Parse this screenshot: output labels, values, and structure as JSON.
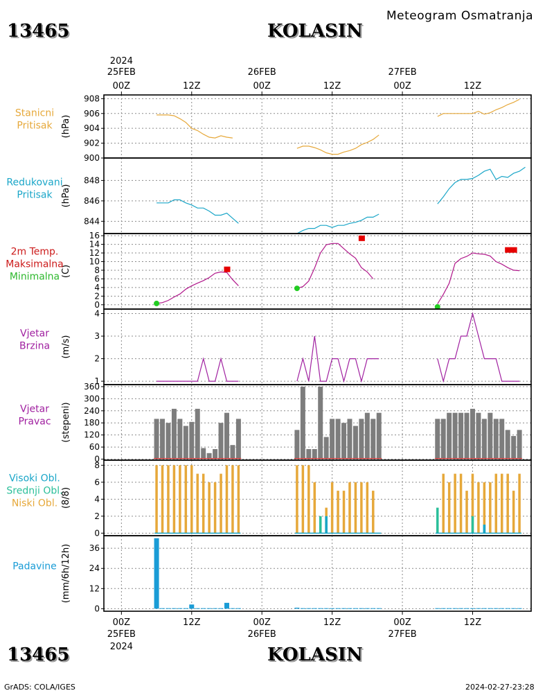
{
  "header": {
    "station_id": "13465",
    "station_name": "KOLASIN",
    "subtitle": "Meteogram Osmatranja"
  },
  "footer": {
    "station_id": "13465",
    "station_name": "KOLASIN",
    "credit": "GrADS: COLA/IGES",
    "timestamp": "2024-02-27-23:28"
  },
  "time_axis": {
    "top_labels": [
      {
        "line1": "2024",
        "line2": "25FEB",
        "line3": "00Z",
        "t": 0
      },
      {
        "line1": "",
        "line2": "",
        "line3": "12Z",
        "t": 12
      },
      {
        "line1": "",
        "line2": "26FEB",
        "line3": "00Z",
        "t": 24
      },
      {
        "line1": "",
        "line2": "",
        "line3": "12Z",
        "t": 36
      },
      {
        "line1": "",
        "line2": "27FEB",
        "line3": "00Z",
        "t": 48
      },
      {
        "line1": "",
        "line2": "",
        "line3": "12Z",
        "t": 60
      }
    ],
    "bottom_labels": [
      {
        "line1": "00Z",
        "line2": "25FEB",
        "line3": "2024",
        "t": 0
      },
      {
        "line1": "12Z",
        "line2": "",
        "line3": "",
        "t": 12
      },
      {
        "line1": "00Z",
        "line2": "26FEB",
        "line3": "",
        "t": 24
      },
      {
        "line1": "12Z",
        "line2": "",
        "line3": "",
        "t": 36
      },
      {
        "line1": "00Z",
        "line2": "27FEB",
        "line3": "",
        "t": 48
      },
      {
        "line1": "12Z",
        "line2": "",
        "line3": "",
        "t": 60
      }
    ],
    "range_hours": [
      -3,
      70
    ]
  },
  "chart_data": [
    {
      "type": "line",
      "id": "stanicni",
      "labels": [
        "Stanicni",
        "Pritisak"
      ],
      "label_colors": [
        "#e6a83a",
        "#e6a83a"
      ],
      "unit": "(hPa)",
      "ylim": [
        900,
        908.5
      ],
      "yticks": [
        900,
        902,
        904,
        906,
        908
      ],
      "color": "#e6a83a",
      "segments": [
        [
          [
            6,
            905.8
          ],
          [
            7,
            905.8
          ],
          [
            8,
            905.8
          ],
          [
            9,
            905.7
          ],
          [
            10,
            905.3
          ],
          [
            11,
            904.8
          ],
          [
            12,
            904.0
          ],
          [
            13,
            903.7
          ],
          [
            14,
            903.2
          ],
          [
            15,
            902.8
          ],
          [
            16,
            902.7
          ],
          [
            17,
            903.0
          ],
          [
            18,
            902.8
          ],
          [
            19,
            902.7
          ]
        ],
        [
          [
            30,
            901.3
          ],
          [
            31,
            901.6
          ],
          [
            32,
            901.6
          ],
          [
            33,
            901.4
          ],
          [
            34,
            901.1
          ],
          [
            35,
            900.7
          ],
          [
            36,
            900.5
          ],
          [
            37,
            900.5
          ],
          [
            38,
            900.8
          ],
          [
            39,
            901.0
          ],
          [
            40,
            901.3
          ],
          [
            41,
            901.8
          ],
          [
            42,
            902.1
          ],
          [
            43,
            902.5
          ],
          [
            44,
            903.1
          ]
        ],
        [
          [
            54,
            905.6
          ],
          [
            55,
            906.0
          ],
          [
            56,
            906.0
          ],
          [
            57,
            906.0
          ],
          [
            58,
            906.0
          ],
          [
            59,
            906.0
          ],
          [
            60,
            906.0
          ],
          [
            61,
            906.3
          ],
          [
            62,
            905.9
          ],
          [
            63,
            906.1
          ],
          [
            64,
            906.5
          ],
          [
            65,
            906.8
          ],
          [
            66,
            907.2
          ],
          [
            67,
            907.5
          ],
          [
            68,
            907.9
          ]
        ]
      ]
    },
    {
      "type": "line",
      "id": "redukovani",
      "labels": [
        "Redukovani",
        "Pritisak"
      ],
      "label_colors": [
        "#1aa6c8",
        "#1aa6c8"
      ],
      "unit": "(hPa)",
      "ylim": [
        842.8,
        850.2
      ],
      "yticks": [
        844,
        846,
        848
      ],
      "color": "#1aa6c8",
      "segments": [
        [
          [
            6,
            845.8
          ],
          [
            7,
            845.8
          ],
          [
            8,
            845.8
          ],
          [
            9,
            846.1
          ],
          [
            10,
            846.1
          ],
          [
            11,
            845.8
          ],
          [
            12,
            845.6
          ],
          [
            13,
            845.3
          ],
          [
            14,
            845.3
          ],
          [
            15,
            845.0
          ],
          [
            16,
            844.6
          ],
          [
            17,
            844.6
          ],
          [
            18,
            844.8
          ],
          [
            19,
            844.3
          ],
          [
            20,
            843.8
          ]
        ],
        [
          [
            30,
            842.8
          ],
          [
            31,
            843.1
          ],
          [
            32,
            843.3
          ],
          [
            33,
            843.3
          ],
          [
            34,
            843.6
          ],
          [
            35,
            843.6
          ],
          [
            36,
            843.4
          ],
          [
            37,
            843.6
          ],
          [
            38,
            843.6
          ],
          [
            39,
            843.8
          ],
          [
            40,
            843.9
          ],
          [
            41,
            844.1
          ],
          [
            42,
            844.4
          ],
          [
            43,
            844.4
          ],
          [
            44,
            844.7
          ]
        ],
        [
          [
            54,
            845.7
          ],
          [
            55,
            846.4
          ],
          [
            56,
            847.2
          ],
          [
            57,
            847.8
          ],
          [
            58,
            848.1
          ],
          [
            59,
            848.1
          ],
          [
            60,
            848.2
          ],
          [
            61,
            848.5
          ],
          [
            62,
            848.9
          ],
          [
            63,
            849.1
          ],
          [
            64,
            848.1
          ],
          [
            65,
            848.4
          ],
          [
            66,
            848.3
          ],
          [
            67,
            848.7
          ],
          [
            68,
            848.9
          ],
          [
            69,
            849.3
          ]
        ]
      ]
    },
    {
      "type": "line",
      "id": "temperatura",
      "labels": [
        "2m Temp.",
        "Maksimalna",
        "Minimalna"
      ],
      "label_colors": [
        "#cc1a1a",
        "#cc1a1a",
        "#2db82d"
      ],
      "unit": "(C)",
      "ylim": [
        -1,
        16.5
      ],
      "yticks": [
        0,
        2,
        4,
        6,
        8,
        10,
        12,
        14,
        16
      ],
      "color": "#b0168a",
      "segments": [
        [
          [
            6,
            0.3
          ],
          [
            7,
            0.5
          ],
          [
            8,
            1.0
          ],
          [
            9,
            1.8
          ],
          [
            10,
            2.5
          ],
          [
            11,
            3.6
          ],
          [
            12,
            4.4
          ],
          [
            13,
            5.0
          ],
          [
            14,
            5.6
          ],
          [
            15,
            6.3
          ],
          [
            16,
            7.3
          ],
          [
            17,
            7.6
          ],
          [
            18,
            7.5
          ],
          [
            19,
            5.8
          ],
          [
            20,
            4.4
          ]
        ],
        [
          [
            30,
            3.8
          ],
          [
            31,
            4.2
          ],
          [
            32,
            5.5
          ],
          [
            33,
            8.5
          ],
          [
            34,
            12.0
          ],
          [
            35,
            13.9
          ],
          [
            36,
            14.2
          ],
          [
            37,
            14.2
          ],
          [
            38,
            13.0
          ],
          [
            39,
            11.8
          ],
          [
            40,
            10.8
          ],
          [
            41,
            8.6
          ],
          [
            42,
            7.6
          ],
          [
            43,
            6.0
          ]
        ],
        [
          [
            54,
            0.2
          ],
          [
            55,
            2.4
          ],
          [
            56,
            5.0
          ],
          [
            57,
            9.6
          ],
          [
            58,
            10.7
          ],
          [
            59,
            11.2
          ],
          [
            60,
            12.0
          ],
          [
            61,
            11.8
          ],
          [
            62,
            11.7
          ],
          [
            63,
            11.3
          ],
          [
            64,
            10.0
          ],
          [
            65,
            9.4
          ],
          [
            66,
            8.6
          ],
          [
            67,
            8.0
          ],
          [
            68,
            7.9
          ]
        ]
      ],
      "max_marks": [
        {
          "t": 18,
          "v": 8.2,
          "color": "#e60000"
        },
        {
          "t": 41,
          "v": 15.4,
          "color": "#e60000"
        },
        {
          "t": 66,
          "v": 12.7,
          "color": "#e60000"
        },
        {
          "t": 67,
          "v": 12.7,
          "color": "#e60000"
        }
      ],
      "min_marks": [
        {
          "t": 6,
          "v": 0.3,
          "color": "#22cc22"
        },
        {
          "t": 30,
          "v": 3.8,
          "color": "#22cc22"
        },
        {
          "t": 54,
          "v": -0.5,
          "color": "#22cc22"
        }
      ]
    },
    {
      "type": "line",
      "id": "vjetar_brzina",
      "labels": [
        "Vjetar",
        "Brzina"
      ],
      "label_colors": [
        "#a020a0",
        "#a020a0"
      ],
      "unit": "(m/s)",
      "ylim": [
        0.85,
        4.2
      ],
      "yticks": [
        1,
        2,
        3,
        4
      ],
      "color": "#a020a0",
      "segments": [
        [
          [
            6,
            1
          ],
          [
            7,
            1
          ],
          [
            8,
            1
          ],
          [
            9,
            1
          ],
          [
            10,
            1
          ],
          [
            11,
            1
          ],
          [
            12,
            1
          ],
          [
            13,
            1
          ],
          [
            14,
            2
          ],
          [
            15,
            1
          ],
          [
            16,
            1
          ],
          [
            17,
            2
          ],
          [
            18,
            1
          ],
          [
            19,
            1
          ],
          [
            20,
            1
          ]
        ],
        [
          [
            30,
            1
          ],
          [
            31,
            2
          ],
          [
            32,
            1
          ],
          [
            33,
            3
          ],
          [
            34,
            1
          ],
          [
            35,
            1
          ],
          [
            36,
            2
          ],
          [
            37,
            2
          ],
          [
            38,
            1
          ],
          [
            39,
            2
          ],
          [
            40,
            2
          ],
          [
            41,
            1
          ],
          [
            42,
            2
          ],
          [
            43,
            2
          ],
          [
            44,
            2
          ]
        ],
        [
          [
            54,
            2
          ],
          [
            55,
            1
          ],
          [
            56,
            2
          ],
          [
            57,
            2
          ],
          [
            58,
            3
          ],
          [
            59,
            3
          ],
          [
            60,
            4
          ],
          [
            61,
            3
          ],
          [
            62,
            2
          ],
          [
            63,
            2
          ],
          [
            64,
            2
          ],
          [
            65,
            1
          ],
          [
            66,
            1
          ],
          [
            67,
            1
          ],
          [
            68,
            1
          ]
        ]
      ]
    },
    {
      "type": "bar",
      "id": "vjetar_pravac",
      "labels": [
        "Vjetar",
        "Pravac"
      ],
      "label_colors": [
        "#a020a0",
        "#a020a0"
      ],
      "unit": "(stepeni)",
      "ylim": [
        -5,
        370
      ],
      "yticks": [
        0,
        60,
        120,
        180,
        240,
        300,
        360
      ],
      "color": "#7d7d7d",
      "x": [
        6,
        7,
        8,
        9,
        10,
        11,
        12,
        13,
        14,
        15,
        16,
        17,
        18,
        19,
        20,
        30,
        31,
        32,
        33,
        34,
        35,
        36,
        37,
        38,
        39,
        40,
        41,
        42,
        43,
        44,
        54,
        55,
        56,
        57,
        58,
        59,
        60,
        61,
        62,
        63,
        64,
        65,
        66,
        67,
        68
      ],
      "values": [
        200,
        200,
        180,
        250,
        200,
        165,
        185,
        250,
        55,
        30,
        50,
        180,
        230,
        70,
        200,
        145,
        360,
        50,
        50,
        360,
        110,
        200,
        200,
        180,
        200,
        165,
        200,
        230,
        200,
        230,
        200,
        200,
        230,
        230,
        230,
        230,
        250,
        230,
        200,
        230,
        200,
        200,
        145,
        115,
        145
      ]
    },
    {
      "type": "bar",
      "id": "oblaci",
      "labels": [
        "Visoki Obl.",
        "Srednji Obl.",
        "Niski Obl."
      ],
      "label_colors": [
        "#1aa6c8",
        "#2bbf9a",
        "#e6a83a"
      ],
      "unit": "(8/8)",
      "ylim": [
        -0.3,
        8.6
      ],
      "yticks": [
        0,
        2,
        4,
        6,
        8
      ],
      "series": [
        {
          "color": "#e6a83a",
          "x": [
            6,
            7,
            8,
            9,
            10,
            11,
            12,
            13,
            14,
            15,
            16,
            17,
            18,
            19,
            20,
            30,
            31,
            32,
            33,
            34,
            35,
            36,
            37,
            38,
            39,
            40,
            41,
            42,
            43,
            44,
            54,
            55,
            56,
            57,
            58,
            59,
            60,
            61,
            62,
            63,
            64,
            65,
            66,
            67,
            68
          ],
          "values": [
            8,
            8,
            8,
            8,
            8,
            8,
            8,
            7,
            7,
            6,
            6,
            7,
            8,
            8,
            8,
            8,
            8,
            8,
            6,
            2,
            3,
            6,
            5,
            5,
            6,
            6,
            6,
            6,
            5,
            0,
            1,
            7,
            6,
            7,
            7,
            5,
            7,
            6,
            6,
            6,
            7,
            7,
            7,
            5,
            7
          ]
        },
        {
          "color": "#2bbf9a",
          "x": [
            34,
            35,
            54,
            60,
            62
          ],
          "values": [
            2,
            2,
            3,
            2,
            1
          ]
        },
        {
          "color": "#1aa6c8",
          "x": [
            35,
            62
          ],
          "values": [
            2,
            1
          ]
        }
      ]
    },
    {
      "type": "bar",
      "id": "padavine",
      "labels": [
        "Padavine"
      ],
      "label_colors": [
        "#1a9cd6"
      ],
      "unit": "(mm/6h/12h)",
      "ylim": [
        -1.5,
        43.5
      ],
      "yticks": [
        0,
        12,
        24,
        36
      ],
      "color": "#1a9cd6",
      "x": [
        6,
        7,
        8,
        9,
        10,
        11,
        12,
        13,
        14,
        15,
        16,
        17,
        18,
        19,
        20,
        30,
        31,
        32,
        33,
        34,
        35,
        36,
        37,
        38,
        39,
        40,
        41,
        42,
        43,
        44,
        54,
        55,
        56,
        57,
        58,
        59,
        60,
        61,
        62,
        63,
        64,
        65,
        66,
        67,
        68
      ],
      "values": [
        42,
        0.3,
        0.3,
        0.3,
        0.3,
        0.3,
        2.5,
        0.3,
        0.3,
        0.3,
        0.3,
        0.3,
        3.5,
        0.3,
        0.3,
        0.6,
        0.3,
        0.3,
        0.3,
        0.3,
        0.3,
        0.3,
        0.3,
        0.3,
        0.3,
        0.3,
        0.3,
        0.3,
        0.3,
        0.3,
        0.3,
        0.3,
        0.3,
        0.3,
        0.3,
        0.3,
        0.3,
        0.3,
        0.3,
        0.3,
        0.3,
        0.3,
        0.3,
        0.3,
        0.3
      ]
    }
  ]
}
